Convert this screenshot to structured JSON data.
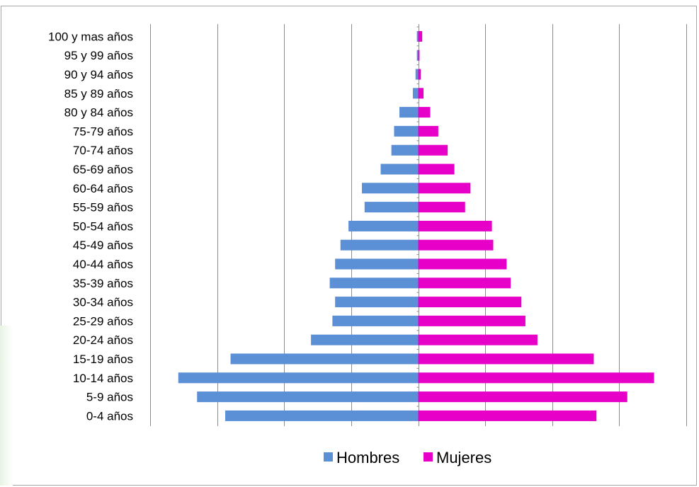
{
  "chart_data": {
    "type": "bar",
    "orientation": "horizontal",
    "layout": "population-pyramid",
    "title": "",
    "xlabel": "",
    "ylabel": "",
    "categories": [
      "100 y mas años",
      "95 y 99 años",
      "90 y 94 años",
      "85 y 89 años",
      "80 y 84 años",
      "75-79 años",
      "70-74 años",
      "65-69 años",
      "60-64 años",
      "55-59 años",
      "50-54 años",
      "45-49 años",
      "40-44 años",
      "35-39 años",
      "30-34 años",
      "25-29 años",
      "20-24 años",
      "15-19 años",
      "10-14 años",
      "5-9 años",
      "0-4 años"
    ],
    "series": [
      {
        "name": "Hombres",
        "color": "#5b8fd6",
        "values": [
          -0.1,
          -0.1,
          -0.2,
          -0.4,
          -1.4,
          -1.8,
          -2.0,
          -2.8,
          -4.2,
          -4.0,
          -5.2,
          -5.8,
          -6.2,
          -6.6,
          -6.2,
          -6.4,
          -8.0,
          -14.0,
          -17.9,
          -16.5,
          -14.4
        ]
      },
      {
        "name": "Mujeres",
        "color": "#e600c8",
        "values": [
          0.3,
          0.1,
          0.2,
          0.4,
          0.9,
          1.5,
          2.2,
          2.7,
          3.9,
          3.5,
          5.5,
          5.6,
          6.6,
          6.9,
          7.7,
          8.0,
          8.9,
          13.1,
          17.6,
          15.6,
          13.3
        ]
      }
    ],
    "xlim": [
      -20,
      20
    ],
    "x_gridlines_step": 5,
    "x_tick_labels_shown": false,
    "grid": true,
    "legend_position": "bottom"
  }
}
